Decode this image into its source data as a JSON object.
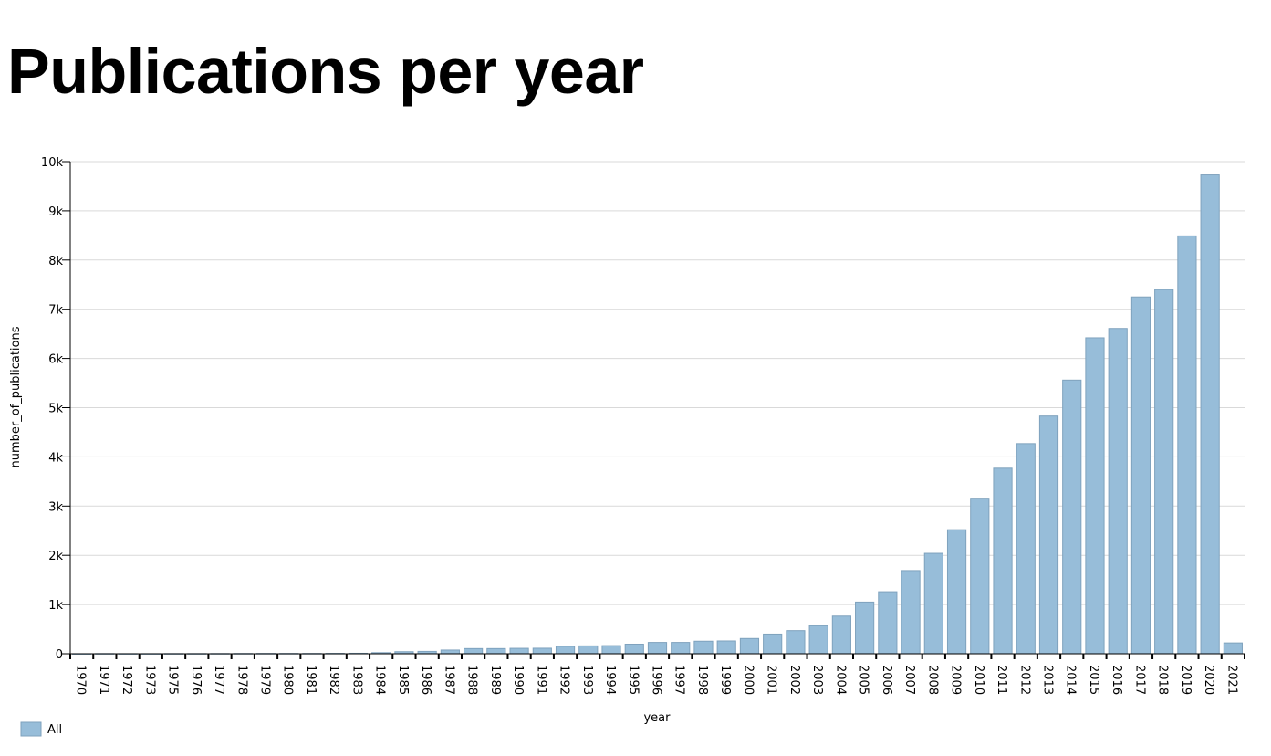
{
  "page": {
    "title": "Publications per year"
  },
  "chart_data": {
    "type": "bar",
    "title": "Publications per year",
    "xlabel": "year",
    "ylabel": "number_of_publications",
    "ylim": [
      0,
      10000
    ],
    "yticks": [
      "0",
      "1k",
      "2k",
      "3k",
      "4k",
      "5k",
      "6k",
      "7k",
      "8k",
      "9k",
      "10k"
    ],
    "ytick_values": [
      0,
      1000,
      2000,
      3000,
      4000,
      5000,
      6000,
      7000,
      8000,
      9000,
      10000
    ],
    "grid": true,
    "legend_position": "bottom-left",
    "bar_color": "#97bdd9",
    "bar_stroke": "#7fa2bd",
    "categories": [
      "1970",
      "1971",
      "1972",
      "1973",
      "1975",
      "1976",
      "1977",
      "1978",
      "1979",
      "1980",
      "1981",
      "1982",
      "1983",
      "1984",
      "1985",
      "1986",
      "1987",
      "1988",
      "1989",
      "1990",
      "1991",
      "1992",
      "1993",
      "1994",
      "1995",
      "1996",
      "1997",
      "1998",
      "1999",
      "2000",
      "2001",
      "2002",
      "2003",
      "2004",
      "2005",
      "2006",
      "2007",
      "2008",
      "2009",
      "2010",
      "2011",
      "2012",
      "2013",
      "2014",
      "2015",
      "2016",
      "2017",
      "2018",
      "2019",
      "2020",
      "2021"
    ],
    "series": [
      {
        "name": "All",
        "values": [
          1,
          3,
          2,
          2,
          3,
          3,
          4,
          5,
          6,
          6,
          6,
          8,
          10,
          22,
          42,
          48,
          75,
          105,
          105,
          110,
          112,
          150,
          160,
          165,
          195,
          230,
          230,
          255,
          260,
          310,
          400,
          470,
          570,
          765,
          1050,
          1260,
          1690,
          2040,
          2520,
          3160,
          3770,
          4270,
          4830,
          5560,
          6420,
          6610,
          7250,
          7400,
          8490,
          9730,
          220
        ]
      }
    ]
  }
}
